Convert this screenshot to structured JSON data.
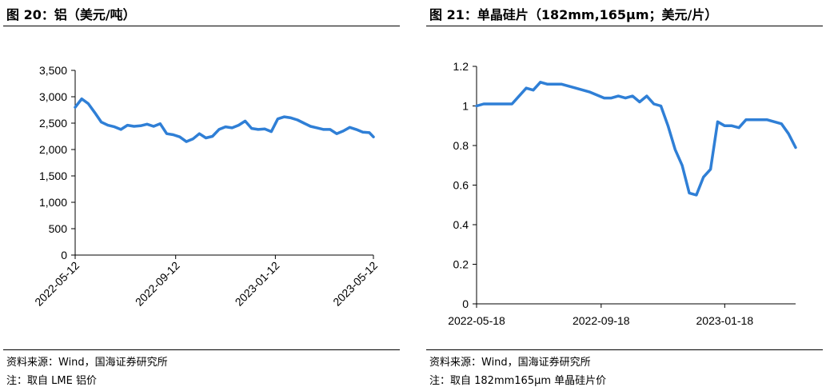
{
  "left": {
    "title": "图 20：铝（美元/吨）",
    "source": "资料来源：Wind，国海证券研究所",
    "note": "注：取自 LME 铝价",
    "chart_data": {
      "type": "line",
      "title": "",
      "xlabel": "",
      "ylabel": "",
      "ylim": [
        0,
        3500
      ],
      "yticks": [
        0,
        500,
        1000,
        1500,
        2000,
        2500,
        3000,
        3500
      ],
      "ytick_labels": [
        "0",
        "500",
        "1,000",
        "1,500",
        "2,000",
        "2,500",
        "3,000",
        "3,500"
      ],
      "xticks": [
        "2022-05-12",
        "2022-09-12",
        "2023-01-12",
        "2023-05-12"
      ],
      "grid": false,
      "legend": "none",
      "series": [
        {
          "color": "#2f7fd6",
          "x": [
            "2022-05-12",
            "2022-05-20",
            "2022-05-28",
            "2022-06-05",
            "2022-06-13",
            "2022-06-21",
            "2022-06-29",
            "2022-07-07",
            "2022-07-15",
            "2022-07-23",
            "2022-07-31",
            "2022-08-08",
            "2022-08-16",
            "2022-08-24",
            "2022-09-01",
            "2022-09-09",
            "2022-09-17",
            "2022-09-25",
            "2022-10-03",
            "2022-10-11",
            "2022-10-19",
            "2022-10-27",
            "2022-11-04",
            "2022-11-12",
            "2022-11-20",
            "2022-11-28",
            "2022-12-06",
            "2022-12-14",
            "2022-12-22",
            "2022-12-30",
            "2023-01-07",
            "2023-01-15",
            "2023-01-23",
            "2023-01-31",
            "2023-02-08",
            "2023-02-16",
            "2023-02-24",
            "2023-03-04",
            "2023-03-12",
            "2023-03-20",
            "2023-03-28",
            "2023-04-05",
            "2023-04-13",
            "2023-04-21",
            "2023-04-29",
            "2023-05-07",
            "2023-05-12"
          ],
          "values": [
            2800,
            2960,
            2870,
            2700,
            2520,
            2460,
            2430,
            2380,
            2460,
            2440,
            2450,
            2480,
            2440,
            2490,
            2300,
            2280,
            2240,
            2150,
            2200,
            2300,
            2220,
            2250,
            2380,
            2430,
            2410,
            2460,
            2540,
            2400,
            2380,
            2390,
            2340,
            2580,
            2620,
            2600,
            2560,
            2500,
            2440,
            2410,
            2380,
            2380,
            2300,
            2350,
            2420,
            2380,
            2330,
            2320,
            2240
          ]
        }
      ]
    }
  },
  "right": {
    "title": "图 21：单晶硅片（182mm,165μm；美元/片）",
    "source": "资料来源：Wind，国海证券研究所",
    "note": "注：取自 182mm165μm 单晶硅片价",
    "chart_data": {
      "type": "line",
      "title": "",
      "xlabel": "",
      "ylabel": "",
      "ylim": [
        0,
        1.2
      ],
      "yticks": [
        0,
        0.2,
        0.4,
        0.6,
        0.8,
        1,
        1.2
      ],
      "ytick_labels": [
        "0",
        "0.2",
        "0.4",
        "0.6",
        "0.8",
        "1",
        "1.2"
      ],
      "xticks": [
        "2022-05-18",
        "2022-09-18",
        "2023-01-18"
      ],
      "grid": false,
      "legend": "none",
      "series": [
        {
          "color": "#2f7fd6",
          "x": [
            "2022-05-18",
            "2022-05-25",
            "2022-06-08",
            "2022-06-22",
            "2022-07-06",
            "2022-07-13",
            "2022-07-20",
            "2022-07-27",
            "2022-08-03",
            "2022-08-10",
            "2022-08-24",
            "2022-09-07",
            "2022-09-21",
            "2022-09-28",
            "2022-10-05",
            "2022-10-12",
            "2022-10-19",
            "2022-10-26",
            "2022-11-02",
            "2022-11-09",
            "2022-11-16",
            "2022-11-23",
            "2022-11-30",
            "2022-12-07",
            "2022-12-14",
            "2022-12-21",
            "2022-12-28",
            "2023-01-04",
            "2023-01-11",
            "2023-01-18",
            "2023-01-25",
            "2023-02-01",
            "2023-02-08",
            "2023-02-15",
            "2023-02-22",
            "2023-03-01",
            "2023-03-08",
            "2023-03-15",
            "2023-03-22",
            "2023-03-29"
          ],
          "values": [
            1.0,
            1.01,
            1.01,
            1.01,
            1.09,
            1.08,
            1.12,
            1.11,
            1.11,
            1.11,
            1.09,
            1.07,
            1.04,
            1.04,
            1.05,
            1.04,
            1.05,
            1.02,
            1.05,
            1.01,
            1.0,
            0.9,
            0.78,
            0.7,
            0.56,
            0.55,
            0.64,
            0.68,
            0.92,
            0.9,
            0.9,
            0.89,
            0.93,
            0.93,
            0.93,
            0.93,
            0.92,
            0.91,
            0.86,
            0.79
          ]
        }
      ]
    }
  }
}
